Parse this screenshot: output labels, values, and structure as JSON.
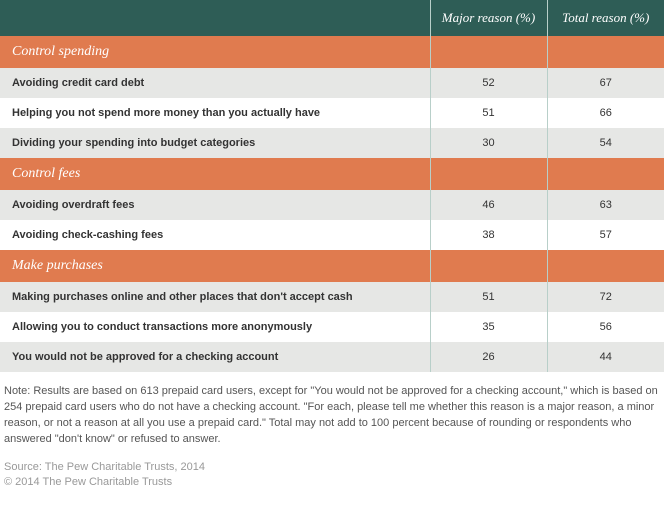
{
  "colors": {
    "header_bg": "#2e5d56",
    "category_bg": "#e07b4f",
    "row_even_bg": "#e6e7e5",
    "row_odd_bg": "#ffffff",
    "col_divider": "#b8cfc9",
    "text": "#333333",
    "note_text": "#555555",
    "source_text": "#999999"
  },
  "header": {
    "blank": "",
    "col1": "Major reason (%)",
    "col2": "Total reason (%)"
  },
  "sections": [
    {
      "title": "Control spending",
      "rows": [
        {
          "label": "Avoiding credit card debt",
          "major": "52",
          "total": "67"
        },
        {
          "label": "Helping you not spend more money than you actually have",
          "major": "51",
          "total": "66"
        },
        {
          "label": "Dividing your spending into budget categories",
          "major": "30",
          "total": "54"
        }
      ]
    },
    {
      "title": "Control fees",
      "rows": [
        {
          "label": "Avoiding overdraft fees",
          "major": "46",
          "total": "63"
        },
        {
          "label": "Avoiding check-cashing fees",
          "major": "38",
          "total": "57"
        }
      ]
    },
    {
      "title": "Make purchases",
      "rows": [
        {
          "label": "Making purchases online and other places that don't accept cash",
          "major": "51",
          "total": "72"
        },
        {
          "label": "Allowing you to conduct transactions more anonymously",
          "major": "35",
          "total": "56"
        },
        {
          "label": "You would not be approved for a checking account",
          "major": "26",
          "total": "44"
        }
      ]
    }
  ],
  "note": "Note: Results are based on 613 prepaid card users, except for \"You would not be approved for a checking account,\" which is based on 254 prepaid card users who do not have a checking account. \"For each, please tell me whether this reason is a major reason, a minor reason, or not a reason at all you use a prepaid card.\" Total may not add to 100 percent because of rounding or respondents who answered \"don't know\" or refused to answer.",
  "source_line1": "Source: The Pew Charitable Trusts, 2014",
  "source_line2": "© 2014 The Pew Charitable Trusts"
}
